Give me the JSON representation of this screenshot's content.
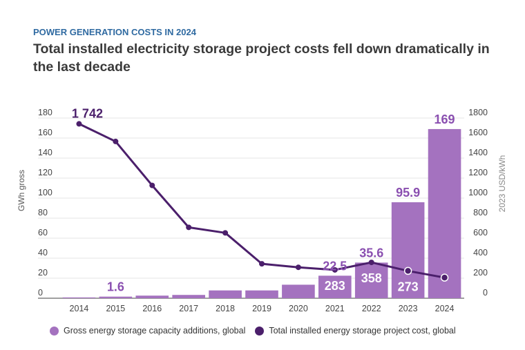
{
  "header": {
    "kicker": "POWER GENERATION COSTS IN 2024",
    "title": "Total installed electricity storage project costs fell down dramatically in the last decade"
  },
  "colors": {
    "bar": "#a472bf",
    "line": "#4b1f6b",
    "bar_label": "#8a4fb0",
    "kicker": "#2f6aa1"
  },
  "chart_data": {
    "type": "bar",
    "title": "Total installed electricity storage project costs fell down dramatically in the last decade",
    "categories": [
      "2014",
      "2015",
      "2016",
      "2017",
      "2018",
      "2019",
      "2020",
      "2021",
      "2022",
      "2023",
      "2024"
    ],
    "series": [
      {
        "name": "Gross energy storage capacity additions, global",
        "type": "bar",
        "axis": "left",
        "values": [
          0.8,
          1.6,
          2.6,
          3.3,
          7.8,
          7.8,
          13.5,
          22.5,
          35.6,
          95.9,
          169
        ]
      },
      {
        "name": "Total installed energy storage project cost, global",
        "type": "line",
        "axis": "right",
        "values": [
          1742,
          1566,
          1127,
          708,
          653,
          344,
          309,
          283,
          358,
          273,
          206
        ]
      }
    ],
    "bar_labels": [
      {
        "index": 1,
        "text": "1.6",
        "position": "above"
      },
      {
        "index": 7,
        "text": "22.5",
        "position": "above"
      },
      {
        "index": 8,
        "text": "35.6",
        "position": "above"
      },
      {
        "index": 9,
        "text": "95.9",
        "position": "above"
      },
      {
        "index": 10,
        "text": "169",
        "position": "above"
      }
    ],
    "line_labels": [
      {
        "index": 0,
        "text": "1 742",
        "position": "above"
      },
      {
        "index": 7,
        "text": "283",
        "position": "inside-bar"
      },
      {
        "index": 8,
        "text": "358",
        "position": "inside-bar"
      },
      {
        "index": 9,
        "text": "273",
        "position": "inside-bar"
      }
    ],
    "ylabel": "GWh gross",
    "ylabel_right": "2023 USD/kWh",
    "xlabel": "",
    "ylim": [
      0,
      180
    ],
    "ylim_right": [
      0,
      1800
    ],
    "yticks": [
      "0",
      "20",
      "40",
      "60",
      "80",
      "100",
      "120",
      "140",
      "160",
      "180"
    ],
    "yticks_right": [
      "0",
      "200",
      "400",
      "600",
      "800",
      "1000",
      "1200",
      "1400",
      "1600",
      "1800"
    ],
    "grid": true,
    "legend_position": "bottom"
  }
}
